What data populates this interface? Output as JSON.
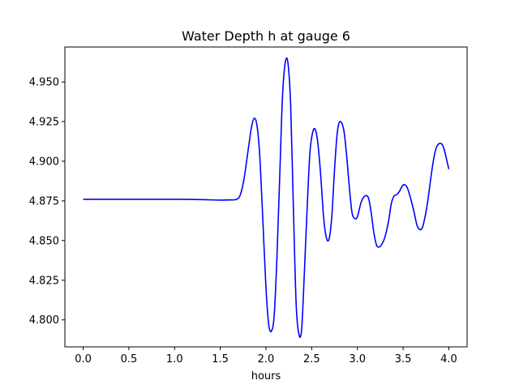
{
  "chart_data": {
    "type": "line",
    "title": "Water Depth h at gauge 6",
    "xlabel": "hours",
    "ylabel": "",
    "xlim": [
      -0.2,
      4.2
    ],
    "ylim": [
      4.783,
      4.972
    ],
    "xticks": [
      0.0,
      0.5,
      1.0,
      1.5,
      2.0,
      2.5,
      3.0,
      3.5,
      4.0
    ],
    "xtick_labels": [
      "0.0",
      "0.5",
      "1.0",
      "1.5",
      "2.0",
      "2.5",
      "3.0",
      "3.5",
      "4.0"
    ],
    "yticks": [
      4.8,
      4.825,
      4.85,
      4.875,
      4.9,
      4.925,
      4.95
    ],
    "ytick_labels": [
      "4.800",
      "4.825",
      "4.850",
      "4.875",
      "4.900",
      "4.925",
      "4.950"
    ],
    "grid": false,
    "series": [
      {
        "name": "",
        "color": "#0000ff",
        "x": [
          0.0,
          0.5,
          1.0,
          1.1,
          1.3,
          1.5,
          1.6,
          1.68,
          1.72,
          1.76,
          1.8,
          1.84,
          1.87,
          1.9,
          1.93,
          1.96,
          2.0,
          2.03,
          2.06,
          2.09,
          2.12,
          2.15,
          2.18,
          2.21,
          2.24,
          2.27,
          2.3,
          2.33,
          2.36,
          2.39,
          2.42,
          2.45,
          2.48,
          2.51,
          2.54,
          2.57,
          2.6,
          2.63,
          2.66,
          2.69,
          2.72,
          2.75,
          2.78,
          2.81,
          2.85,
          2.88,
          2.91,
          2.94,
          2.97,
          3.0,
          3.04,
          3.08,
          3.12,
          3.15,
          3.18,
          3.21,
          3.24,
          3.27,
          3.3,
          3.34,
          3.37,
          3.4,
          3.43,
          3.46,
          3.5,
          3.54,
          3.58,
          3.62,
          3.65,
          3.68,
          3.71,
          3.74,
          3.77,
          3.8,
          3.83,
          3.86,
          3.89,
          3.92,
          3.94,
          3.96,
          3.98,
          4.0
        ],
        "y": [
          4.876,
          4.876,
          4.876,
          4.876,
          4.8758,
          4.8755,
          4.8756,
          4.876,
          4.879,
          4.889,
          4.905,
          4.921,
          4.927,
          4.923,
          4.905,
          4.87,
          4.82,
          4.797,
          4.793,
          4.803,
          4.84,
          4.89,
          4.94,
          4.962,
          4.962,
          4.935,
          4.87,
          4.81,
          4.791,
          4.794,
          4.83,
          4.87,
          4.905,
          4.918,
          4.92,
          4.91,
          4.89,
          4.865,
          4.852,
          4.851,
          4.865,
          4.895,
          4.918,
          4.925,
          4.92,
          4.905,
          4.885,
          4.868,
          4.864,
          4.865,
          4.874,
          4.878,
          4.877,
          4.868,
          4.855,
          4.847,
          4.846,
          4.848,
          4.852,
          4.862,
          4.873,
          4.878,
          4.879,
          4.881,
          4.885,
          4.884,
          4.877,
          4.868,
          4.86,
          4.857,
          4.858,
          4.865,
          4.875,
          4.888,
          4.9,
          4.908,
          4.911,
          4.911,
          4.909,
          4.905,
          4.9,
          4.895
        ]
      }
    ]
  }
}
